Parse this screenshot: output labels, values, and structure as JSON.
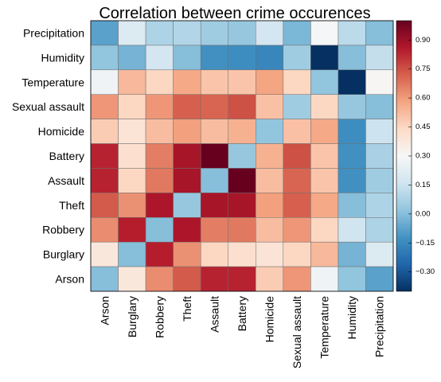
{
  "chart_data": {
    "type": "heatmap",
    "title": "Correlation between crime occurences",
    "rows": [
      "Precipitation",
      "Humidity",
      "Temperature",
      "Sexual assault",
      "Homicide",
      "Battery",
      "Assault",
      "Theft",
      "Robbery",
      "Burglary",
      "Arson"
    ],
    "columns": [
      "Arson",
      "Burglary",
      "Robbery",
      "Theft",
      "Assault",
      "Battery",
      "Homicide",
      "Sexual assault",
      "Temperature",
      "Humidity",
      "Precipitation"
    ],
    "values": [
      [
        -0.08,
        0.2,
        0.08,
        0.09,
        0.05,
        0.03,
        0.17,
        -0.02,
        0.29,
        0.11,
        0.0
      ],
      [
        0.02,
        -0.03,
        0.17,
        0.0,
        -0.13,
        -0.14,
        -0.16,
        0.05,
        -0.4,
        0.0,
        0.13
      ],
      [
        0.27,
        0.53,
        0.45,
        0.57,
        0.5,
        0.5,
        0.58,
        0.45,
        0.02,
        -0.4,
        0.31
      ],
      [
        0.61,
        0.45,
        0.61,
        0.72,
        0.71,
        0.75,
        0.51,
        0.05,
        0.45,
        0.03,
        0.0
      ],
      [
        0.48,
        0.4,
        0.52,
        0.59,
        0.52,
        0.55,
        0.02,
        0.51,
        0.57,
        -0.14,
        0.15
      ],
      [
        0.84,
        0.42,
        0.66,
        0.88,
        1.0,
        0.03,
        0.55,
        0.75,
        0.5,
        -0.13,
        0.07
      ],
      [
        0.84,
        0.45,
        0.67,
        0.88,
        0.0,
        1.0,
        0.52,
        0.71,
        0.5,
        -0.13,
        0.05
      ],
      [
        0.73,
        0.62,
        0.87,
        0.03,
        0.88,
        0.88,
        0.59,
        0.72,
        0.57,
        0.0,
        0.08
      ],
      [
        0.63,
        0.85,
        0.0,
        0.87,
        0.66,
        0.67,
        0.52,
        0.61,
        0.45,
        0.16,
        0.08
      ],
      [
        0.38,
        0.0,
        0.85,
        0.62,
        0.45,
        0.42,
        0.4,
        0.45,
        0.53,
        -0.03,
        0.2
      ],
      [
        0.0,
        0.38,
        0.63,
        0.73,
        0.84,
        0.84,
        0.48,
        0.61,
        0.27,
        0.02,
        -0.08
      ]
    ],
    "colorbar": {
      "min": -0.4,
      "max": 1.0,
      "ticks": [
        "0.90",
        "0.75",
        "0.60",
        "0.45",
        "0.30",
        "0.15",
        "0.00",
        "−0.15",
        "−0.30"
      ],
      "tick_values": [
        0.9,
        0.75,
        0.6,
        0.45,
        0.3,
        0.15,
        0.0,
        -0.15,
        -0.3
      ],
      "colormap": [
        "#053061",
        "#2166ac",
        "#4393c3",
        "#92c5de",
        "#d1e5f0",
        "#f7f7f7",
        "#fddbc7",
        "#f4a582",
        "#d6604d",
        "#b2182b",
        "#67001f"
      ]
    }
  }
}
